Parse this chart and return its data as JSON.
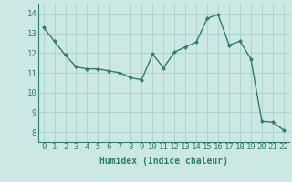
{
  "x": [
    0,
    1,
    2,
    3,
    4,
    5,
    6,
    7,
    8,
    9,
    10,
    11,
    12,
    13,
    14,
    15,
    16,
    17,
    18,
    19,
    20,
    21,
    22
  ],
  "y": [
    13.3,
    12.6,
    11.9,
    11.3,
    11.2,
    11.2,
    11.1,
    11.0,
    10.75,
    10.65,
    11.95,
    11.25,
    12.05,
    12.3,
    12.55,
    13.75,
    13.95,
    12.4,
    12.6,
    11.7,
    8.55,
    8.5,
    8.1
  ],
  "line_color": "#2e7d6e",
  "marker": "D",
  "marker_size": 2.2,
  "line_width": 1.0,
  "bg_color": "#cce8e4",
  "grid_color": "#aacfcb",
  "xlabel": "Humidex (Indice chaleur)",
  "xlim": [
    -0.5,
    22.5
  ],
  "ylim": [
    7.5,
    14.5
  ],
  "yticks": [
    8,
    9,
    10,
    11,
    12,
    13,
    14
  ],
  "xticks": [
    0,
    1,
    2,
    3,
    4,
    5,
    6,
    7,
    8,
    9,
    10,
    11,
    12,
    13,
    14,
    15,
    16,
    17,
    18,
    19,
    20,
    21,
    22
  ],
  "xlabel_fontsize": 7,
  "tick_fontsize": 6.5
}
